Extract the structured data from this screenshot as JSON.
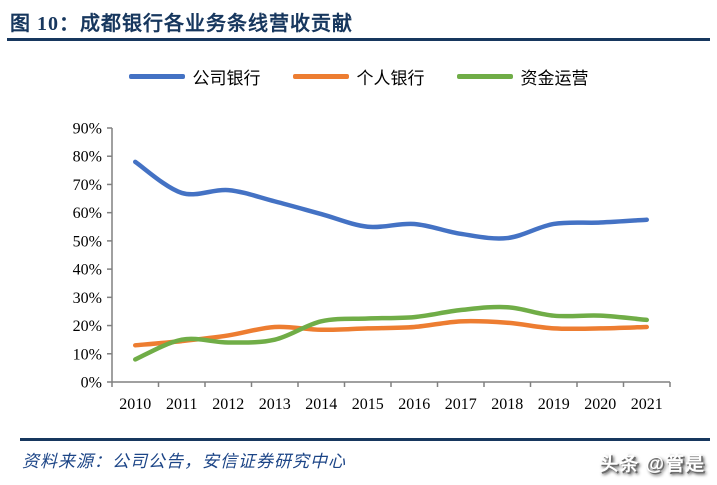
{
  "header": {
    "title": "图 10：成都银行各业务条线营收贡献",
    "accent_color": "#17375E"
  },
  "chart_data": {
    "type": "line",
    "title": "成都银行各业务条线营收贡献",
    "categories": [
      "2010",
      "2011",
      "2012",
      "2013",
      "2014",
      "2015",
      "2016",
      "2017",
      "2018",
      "2019",
      "2020",
      "2021"
    ],
    "series": [
      {
        "name": "公司银行",
        "color": "#4472C4",
        "values": [
          78,
          67,
          68,
          64,
          59.5,
          55,
          56,
          52.5,
          51,
          56,
          56.5,
          57.5
        ]
      },
      {
        "name": "个人银行",
        "color": "#ED7D31",
        "values": [
          13,
          14.5,
          16.5,
          19.5,
          18.5,
          19,
          19.5,
          21.5,
          21,
          19,
          19,
          19.5
        ]
      },
      {
        "name": "资金运营",
        "color": "#70AD47",
        "values": [
          8,
          15,
          14,
          15,
          21.5,
          22.5,
          23,
          25.5,
          26.5,
          23.5,
          23.5,
          22
        ]
      }
    ],
    "ylim": [
      0,
      90
    ],
    "ytick_step": 10,
    "ytick_suffix": "%",
    "axis_color": "#808080",
    "tick_label_color": "#000000",
    "grid": false,
    "smooth": true,
    "legend_position": "top",
    "line_width": 4.5
  },
  "footer": {
    "source_label": "资料来源：公司公告，安信证券研究中心",
    "watermark": "头条 @管是"
  }
}
